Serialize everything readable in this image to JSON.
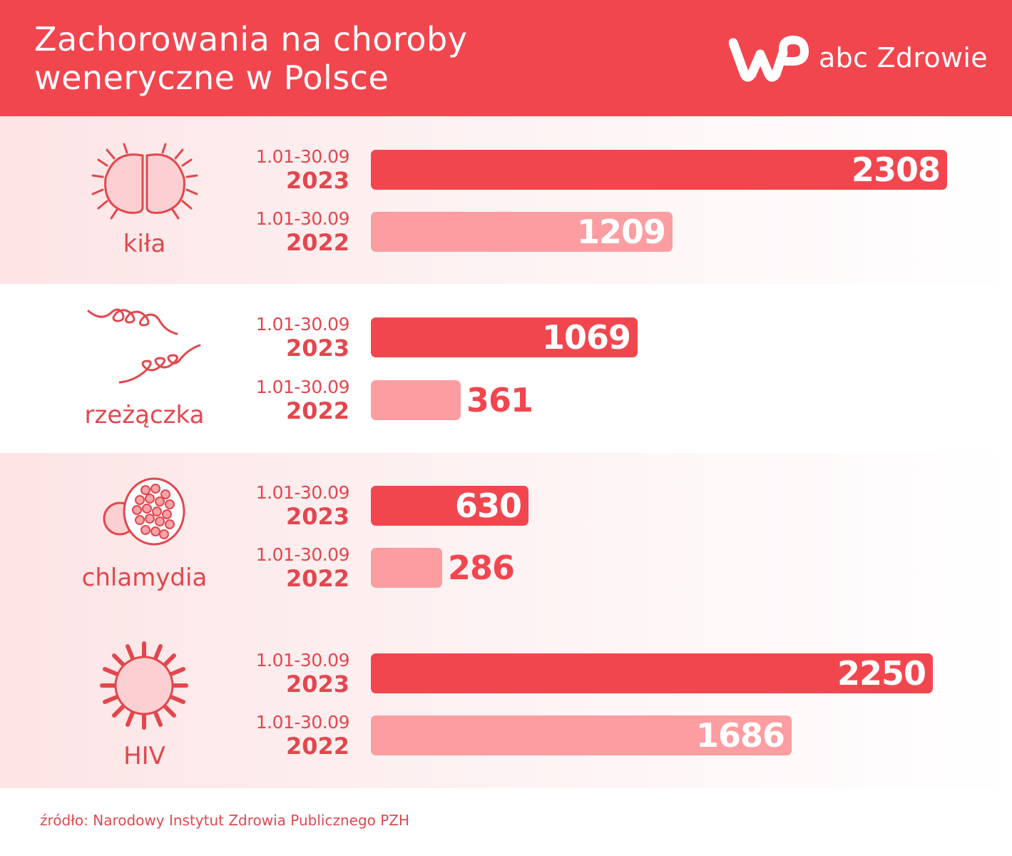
{
  "header": {
    "title_line1": "Zachorowania na choroby",
    "title_line2": "weneryczne w Polsce",
    "brand": "abc Zdrowie",
    "logo_icon": "wp-logo-icon"
  },
  "colors": {
    "header_bg": "#f2464f",
    "bar_2023": "#f2464f",
    "bar_2022": "#fc9da1",
    "text_accent": "#e2474e"
  },
  "chart_data": {
    "type": "bar",
    "orientation": "horizontal",
    "title": "Zachorowania na choroby weneryczne w Polsce",
    "categories": [
      "kiła",
      "rzeżączka",
      "chlamydia",
      "HIV"
    ],
    "series": [
      {
        "name": "2023",
        "period": "1.01-30.09",
        "values": [
          2308,
          1069,
          630,
          2250
        ]
      },
      {
        "name": "2022",
        "period": "1.01-30.09",
        "values": [
          1209,
          361,
          286,
          1686
        ]
      }
    ],
    "groups": [
      {
        "label": "kiła",
        "icon": "syphilis-bacteria-icon",
        "rows": [
          {
            "range": "1.01-30.09",
            "year": "2023",
            "value": 2308,
            "display": "2308"
          },
          {
            "range": "1.01-30.09",
            "year": "2022",
            "value": 1209,
            "display": "1209"
          }
        ]
      },
      {
        "label": "rzeżączka",
        "icon": "gonorrhea-bacteria-icon",
        "rows": [
          {
            "range": "1.01-30.09",
            "year": "2023",
            "value": 1069,
            "display": "1069"
          },
          {
            "range": "1.01-30.09",
            "year": "2022",
            "value": 361,
            "display": "361"
          }
        ]
      },
      {
        "label": "chlamydia",
        "icon": "chlamydia-cell-icon",
        "rows": [
          {
            "range": "1.01-30.09",
            "year": "2023",
            "value": 630,
            "display": "630"
          },
          {
            "range": "1.01-30.09",
            "year": "2022",
            "value": 286,
            "display": "286"
          }
        ]
      },
      {
        "label": "HIV",
        "icon": "hiv-virus-icon",
        "rows": [
          {
            "range": "1.01-30.09",
            "year": "2023",
            "value": 2250,
            "display": "2250"
          },
          {
            "range": "1.01-30.09",
            "year": "2022",
            "value": 1686,
            "display": "1686"
          }
        ]
      }
    ],
    "legend": "none",
    "grid": false
  },
  "source": "źródło: Narodowy Instytut Zdrowia Publicznego PZH"
}
